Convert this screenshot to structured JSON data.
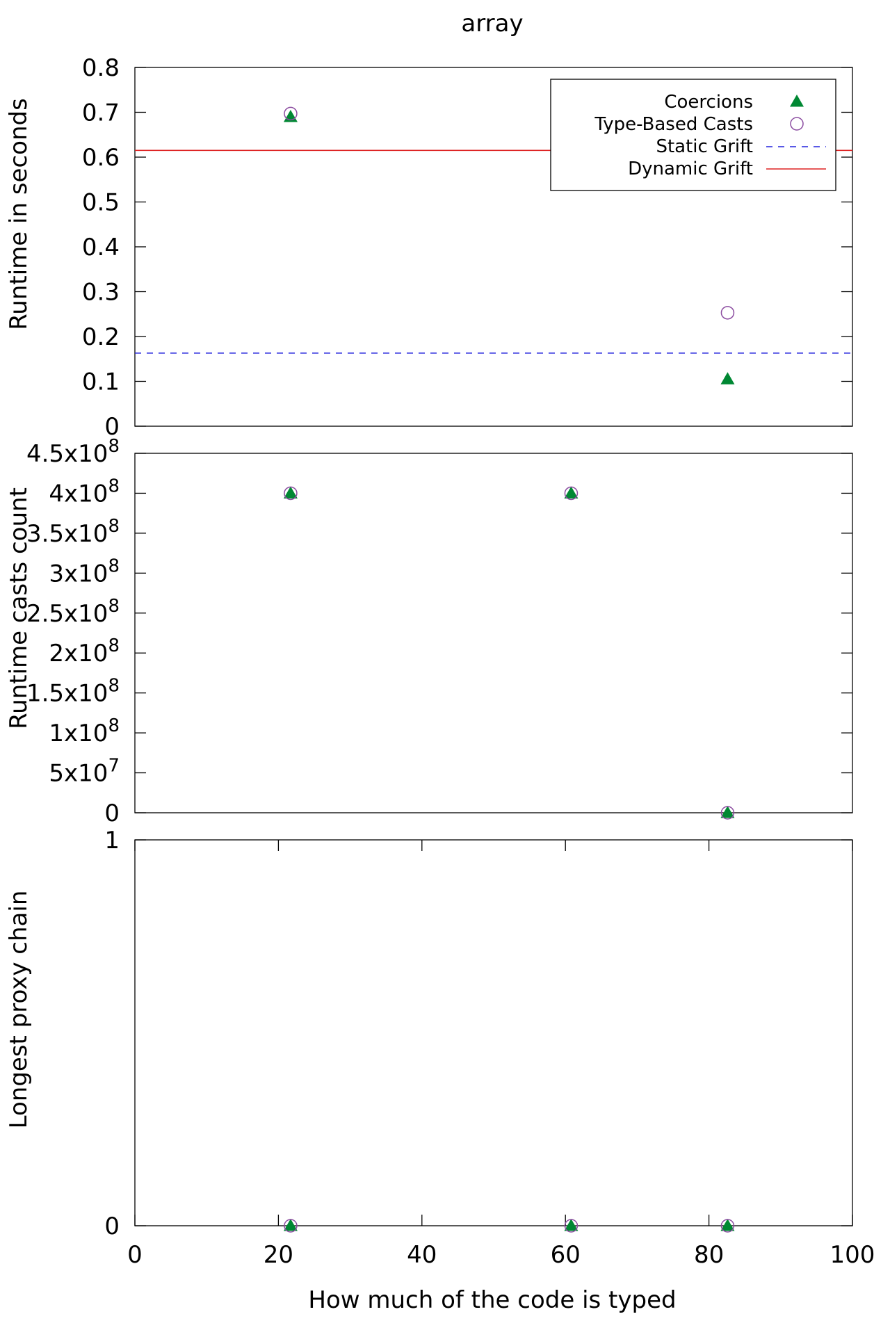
{
  "chart_data": [
    {
      "type": "scatter",
      "title": "array",
      "ylabel": "Runtime in seconds",
      "xlim": [
        0,
        100
      ],
      "ylim": [
        0,
        0.8
      ],
      "yticks": [
        0,
        0.1,
        0.2,
        0.3,
        0.4,
        0.5,
        0.6,
        0.7,
        0.8
      ],
      "ytick_labels": [
        "0",
        "0.1",
        "0.2",
        "0.3",
        "0.4",
        "0.5",
        "0.6",
        "0.7",
        "0.8"
      ],
      "series": [
        {
          "name": "Coercions",
          "marker": "triangle",
          "color": "#008833",
          "x": [
            21.7,
            82.6
          ],
          "y": [
            0.69,
            0.105
          ]
        },
        {
          "name": "Type-Based Casts",
          "marker": "circle",
          "color": "#8b4ca0",
          "x": [
            21.7,
            82.6
          ],
          "y": [
            0.697,
            0.253
          ]
        }
      ],
      "reference_lines": [
        {
          "name": "Static Grift",
          "style": "dashed",
          "color": "#2222dd",
          "y": 0.163
        },
        {
          "name": "Dynamic Grift",
          "style": "solid",
          "color": "#dd2222",
          "y": 0.615
        }
      ],
      "legend_position": "top-right",
      "grid": false
    },
    {
      "type": "scatter",
      "ylabel": "Runtime casts count",
      "xlim": [
        0,
        100
      ],
      "ylim": [
        0,
        450000000
      ],
      "yticks": [
        0,
        50000000,
        100000000,
        150000000,
        200000000,
        250000000,
        300000000,
        350000000,
        400000000,
        450000000
      ],
      "ytick_labels": [
        {
          "base": "0",
          "exp": ""
        },
        {
          "base": "5x10",
          "exp": "7"
        },
        {
          "base": "1x10",
          "exp": "8"
        },
        {
          "base": "1.5x10",
          "exp": "8"
        },
        {
          "base": "2x10",
          "exp": "8"
        },
        {
          "base": "2.5x10",
          "exp": "8"
        },
        {
          "base": "3x10",
          "exp": "8"
        },
        {
          "base": "3.5x10",
          "exp": "8"
        },
        {
          "base": "4x10",
          "exp": "8"
        },
        {
          "base": "4.5x10",
          "exp": "8"
        }
      ],
      "series": [
        {
          "name": "Coercions",
          "marker": "triangle",
          "color": "#008833",
          "x": [
            21.7,
            60.8,
            82.6
          ],
          "y": [
            400000000,
            400000000,
            0
          ]
        },
        {
          "name": "Type-Based Casts",
          "marker": "circle",
          "color": "#8b4ca0",
          "x": [
            21.7,
            60.8,
            82.6
          ],
          "y": [
            400000000,
            400000000,
            0
          ]
        }
      ],
      "grid": false
    },
    {
      "type": "scatter",
      "ylabel": "Longest proxy chain",
      "xlabel": "How much of the code is typed",
      "xlim": [
        0,
        100
      ],
      "ylim": [
        0,
        1
      ],
      "yticks": [
        0,
        1
      ],
      "ytick_labels": [
        "0",
        "1"
      ],
      "xticks": [
        0,
        20,
        40,
        60,
        80,
        100
      ],
      "xtick_labels": [
        "0",
        "20",
        "40",
        "60",
        "80",
        "100"
      ],
      "series": [
        {
          "name": "Coercions",
          "marker": "triangle",
          "color": "#008833",
          "x": [
            21.7,
            60.8,
            82.6
          ],
          "y": [
            0,
            0,
            0
          ]
        },
        {
          "name": "Type-Based Casts",
          "marker": "circle",
          "color": "#8b4ca0",
          "x": [
            21.7,
            60.8,
            82.6
          ],
          "y": [
            0,
            0,
            0
          ]
        }
      ],
      "grid": false
    }
  ]
}
